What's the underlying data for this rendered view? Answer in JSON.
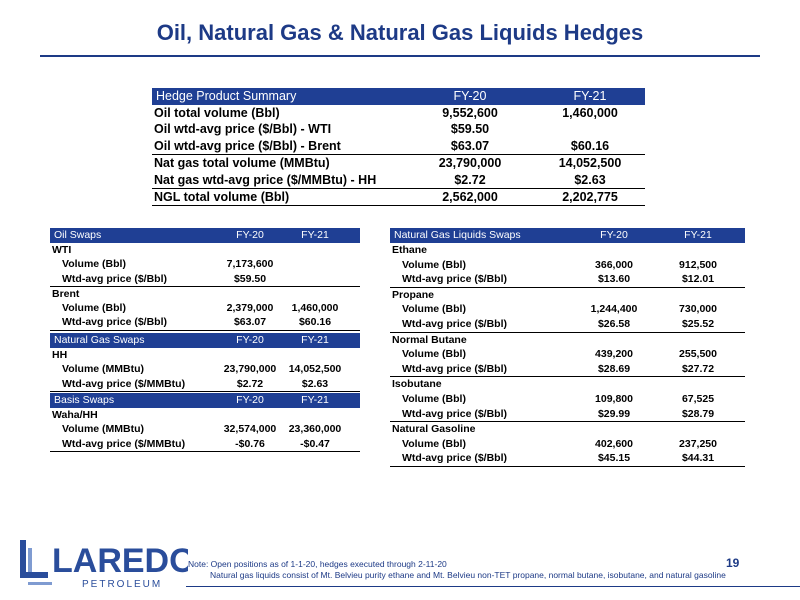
{
  "title": "Oil, Natural Gas & Natural Gas Liquids Hedges",
  "summary": {
    "header": [
      "Hedge Product Summary",
      "FY-20",
      "FY-21"
    ],
    "rows": [
      [
        "Oil total volume (Bbl)",
        "9,552,600",
        "1,460,000"
      ],
      [
        "Oil wtd-avg price ($/Bbl) - WTI",
        "$59.50"
      ],
      [
        "Oil wtd-avg price ($/Bbl) - Brent",
        "$63.07",
        "$60.16"
      ],
      [
        "Nat gas total volume (MMBtu)",
        "23,790,000",
        "14,052,500"
      ],
      [
        "Nat gas wtd-avg price ($/MMBtu) - HH",
        "$2.72",
        "$2.63"
      ],
      [
        "NGL total volume (Bbl)",
        "2,562,000",
        "2,202,775"
      ]
    ]
  },
  "oil_swaps": {
    "header": [
      "Oil Swaps",
      "FY-20",
      "FY-21"
    ],
    "rows": [
      [
        "WTI"
      ],
      [
        "Volume (Bbl)",
        "7,173,600"
      ],
      [
        "Wtd-avg price ($/Bbl)",
        "$59.50"
      ],
      [
        "Brent"
      ],
      [
        "Volume (Bbl)",
        "2,379,000",
        "1,460,000"
      ],
      [
        "Wtd-avg price ($/Bbl)",
        "$63.07",
        "$60.16"
      ]
    ]
  },
  "natural_gas_swaps": {
    "header": [
      "Natural Gas Swaps",
      "FY-20",
      "FY-21"
    ],
    "rows": [
      [
        "HH"
      ],
      [
        "Volume (MMBtu)",
        "23,790,000",
        "14,052,500"
      ],
      [
        "Wtd-avg price ($/MMBtu)",
        "$2.72",
        "$2.63"
      ]
    ]
  },
  "basis_swaps": {
    "header": [
      "Basis Swaps",
      "FY-20",
      "FY-21"
    ],
    "rows": [
      [
        "Waha/HH"
      ],
      [
        "Volume (MMBtu)",
        "32,574,000",
        "23,360,000"
      ],
      [
        "Wtd-avg price ($/MMBtu)",
        "-$0.76",
        "-$0.47"
      ]
    ]
  },
  "ngl_swaps": {
    "header": [
      "Natural Gas Liquids Swaps",
      "FY-20",
      "FY-21"
    ],
    "rows": [
      [
        "Ethane"
      ],
      [
        "Volume (Bbl)",
        "366,000",
        "912,500"
      ],
      [
        "Wtd-avg price ($/Bbl)",
        "$13.60",
        "$12.01"
      ],
      [
        "Propane"
      ],
      [
        "Volume (Bbl)",
        "1,244,400",
        "730,000"
      ],
      [
        "Wtd-avg price ($/Bbl)",
        "$26.58",
        "$25.52"
      ],
      [
        "Normal Butane"
      ],
      [
        "Volume (Bbl)",
        "439,200",
        "255,500"
      ],
      [
        "Wtd-avg price ($/Bbl)",
        "$28.69",
        "$27.72"
      ],
      [
        "Isobutane"
      ],
      [
        "Volume (Bbl)",
        "109,800",
        "67,525"
      ],
      [
        "Wtd-avg price ($/Bbl)",
        "$29.99",
        "$28.79"
      ],
      [
        "Natural Gasoline"
      ],
      [
        "Volume (Bbl)",
        "402,600",
        "237,250"
      ],
      [
        "Wtd-avg price ($/Bbl)",
        "$45.15",
        "$44.31"
      ]
    ]
  },
  "footer": {
    "logo": "LAREDO",
    "logo_sub": "PETROLEUM",
    "note": "Note: Open positions as of 1-1-20, hedges executed through 2-11-20",
    "note2": "Natural gas liquids consist of Mt. Belvieu purity ethane and Mt. Belvieu non-TET propane, normal butane, isobutane, and natural gasoline",
    "page": "19"
  }
}
